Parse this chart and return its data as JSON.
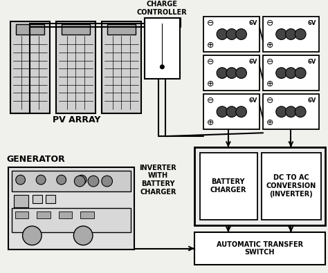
{
  "bg_color": "#f0f0ec",
  "line_color": "#111111",
  "figsize": [
    4.74,
    3.95
  ],
  "dpi": 100,
  "labels": {
    "pv_array": "PV ARRAY",
    "generator": "GENERATOR",
    "charge_controller": "CHARGE\nCONTROLLER",
    "inverter_with": "INVERTER\nWITH\nBATTERY\nCHARGER",
    "battery_charger": "BATTERY\nCHARGER",
    "dc_to_ac": "DC TO AC\nCONVERSION\n(INVERTER)",
    "auto_transfer": "AUTOMATIC TRANSFER\nSWITCH",
    "battery_v": "6V"
  }
}
